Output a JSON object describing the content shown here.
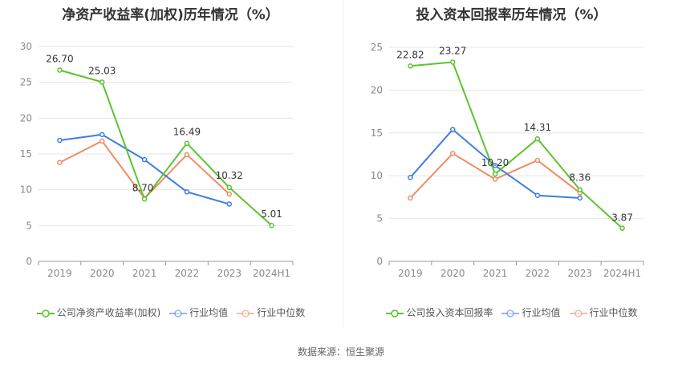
{
  "chart_data": [
    {
      "type": "line",
      "title": "净资产收益率(加权)历年情况（%）",
      "categories": [
        "2019",
        "2020",
        "2021",
        "2022",
        "2023",
        "2024H1"
      ],
      "ylim": [
        0,
        30
      ],
      "yticks": [
        0,
        5,
        10,
        15,
        20,
        25,
        30
      ],
      "grid": true,
      "legend_position": "bottom",
      "series": [
        {
          "name": "公司净资产收益率(加权)",
          "color": "#5cc42d",
          "labeled": true,
          "labels": [
            "26.70",
            "25.03",
            "8.70",
            "16.49",
            "10.32",
            "5.01"
          ],
          "values": [
            26.7,
            25.03,
            8.7,
            16.49,
            10.32,
            5.01
          ]
        },
        {
          "name": "行业均值",
          "color": "#3f7de0",
          "labeled": false,
          "values": [
            16.9,
            17.7,
            14.2,
            9.7,
            8.0,
            null
          ]
        },
        {
          "name": "行业中位数",
          "color": "#f08c65",
          "labeled": false,
          "values": [
            13.8,
            16.8,
            8.8,
            14.9,
            9.4,
            null
          ]
        }
      ]
    },
    {
      "type": "line",
      "title": "投入资本回报率历年情况（%）",
      "categories": [
        "2019",
        "2020",
        "2021",
        "2022",
        "2023",
        "2024H1"
      ],
      "ylim": [
        0,
        25
      ],
      "yticks": [
        0,
        5,
        10,
        15,
        20,
        25
      ],
      "grid": true,
      "legend_position": "bottom",
      "series": [
        {
          "name": "公司投入资本回报率",
          "color": "#5cc42d",
          "labeled": true,
          "labels": [
            "22.82",
            "23.27",
            "10.20",
            "14.31",
            "8.36",
            "3.87"
          ],
          "values": [
            22.82,
            23.27,
            10.2,
            14.31,
            8.36,
            3.87
          ]
        },
        {
          "name": "行业均值",
          "color": "#3f7de0",
          "labeled": false,
          "values": [
            9.8,
            15.4,
            11.2,
            7.7,
            7.4,
            null
          ]
        },
        {
          "name": "行业中位数",
          "color": "#f08c65",
          "labeled": false,
          "values": [
            7.4,
            12.6,
            9.6,
            11.8,
            8.0,
            null
          ]
        }
      ]
    }
  ],
  "footer": {
    "source": "数据来源：恒生聚源"
  }
}
